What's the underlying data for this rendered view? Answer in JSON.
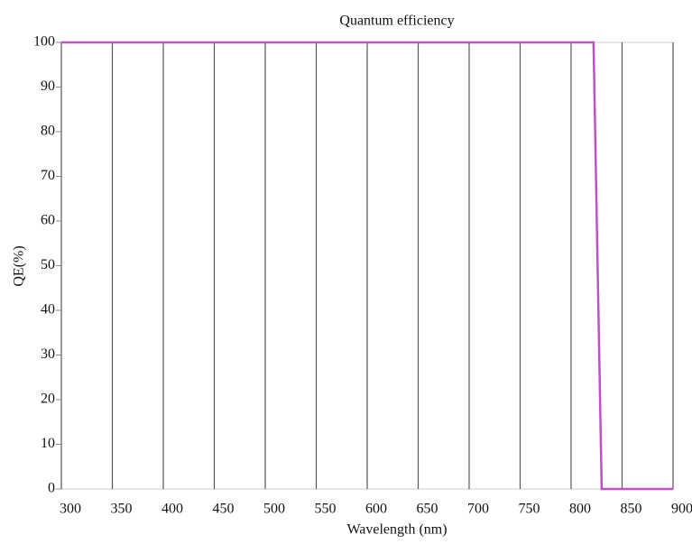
{
  "chart_data": {
    "type": "line",
    "title": "Quantum efficiency",
    "xlabel": "Wavelength (nm)",
    "ylabel": "QE(%)",
    "x": [
      300,
      822,
      830,
      900
    ],
    "series": [
      {
        "name": "QE",
        "color": "#c050c8",
        "values": [
          100,
          100,
          0,
          0
        ]
      }
    ],
    "xlim": [
      300,
      900
    ],
    "xticks": [
      300,
      350,
      400,
      450,
      500,
      550,
      600,
      650,
      700,
      750,
      800,
      850,
      900
    ],
    "ylim": [
      0,
      100
    ],
    "yticks": [
      0,
      10,
      20,
      30,
      40,
      50,
      60,
      70,
      80,
      90,
      100
    ],
    "grid": "x"
  }
}
